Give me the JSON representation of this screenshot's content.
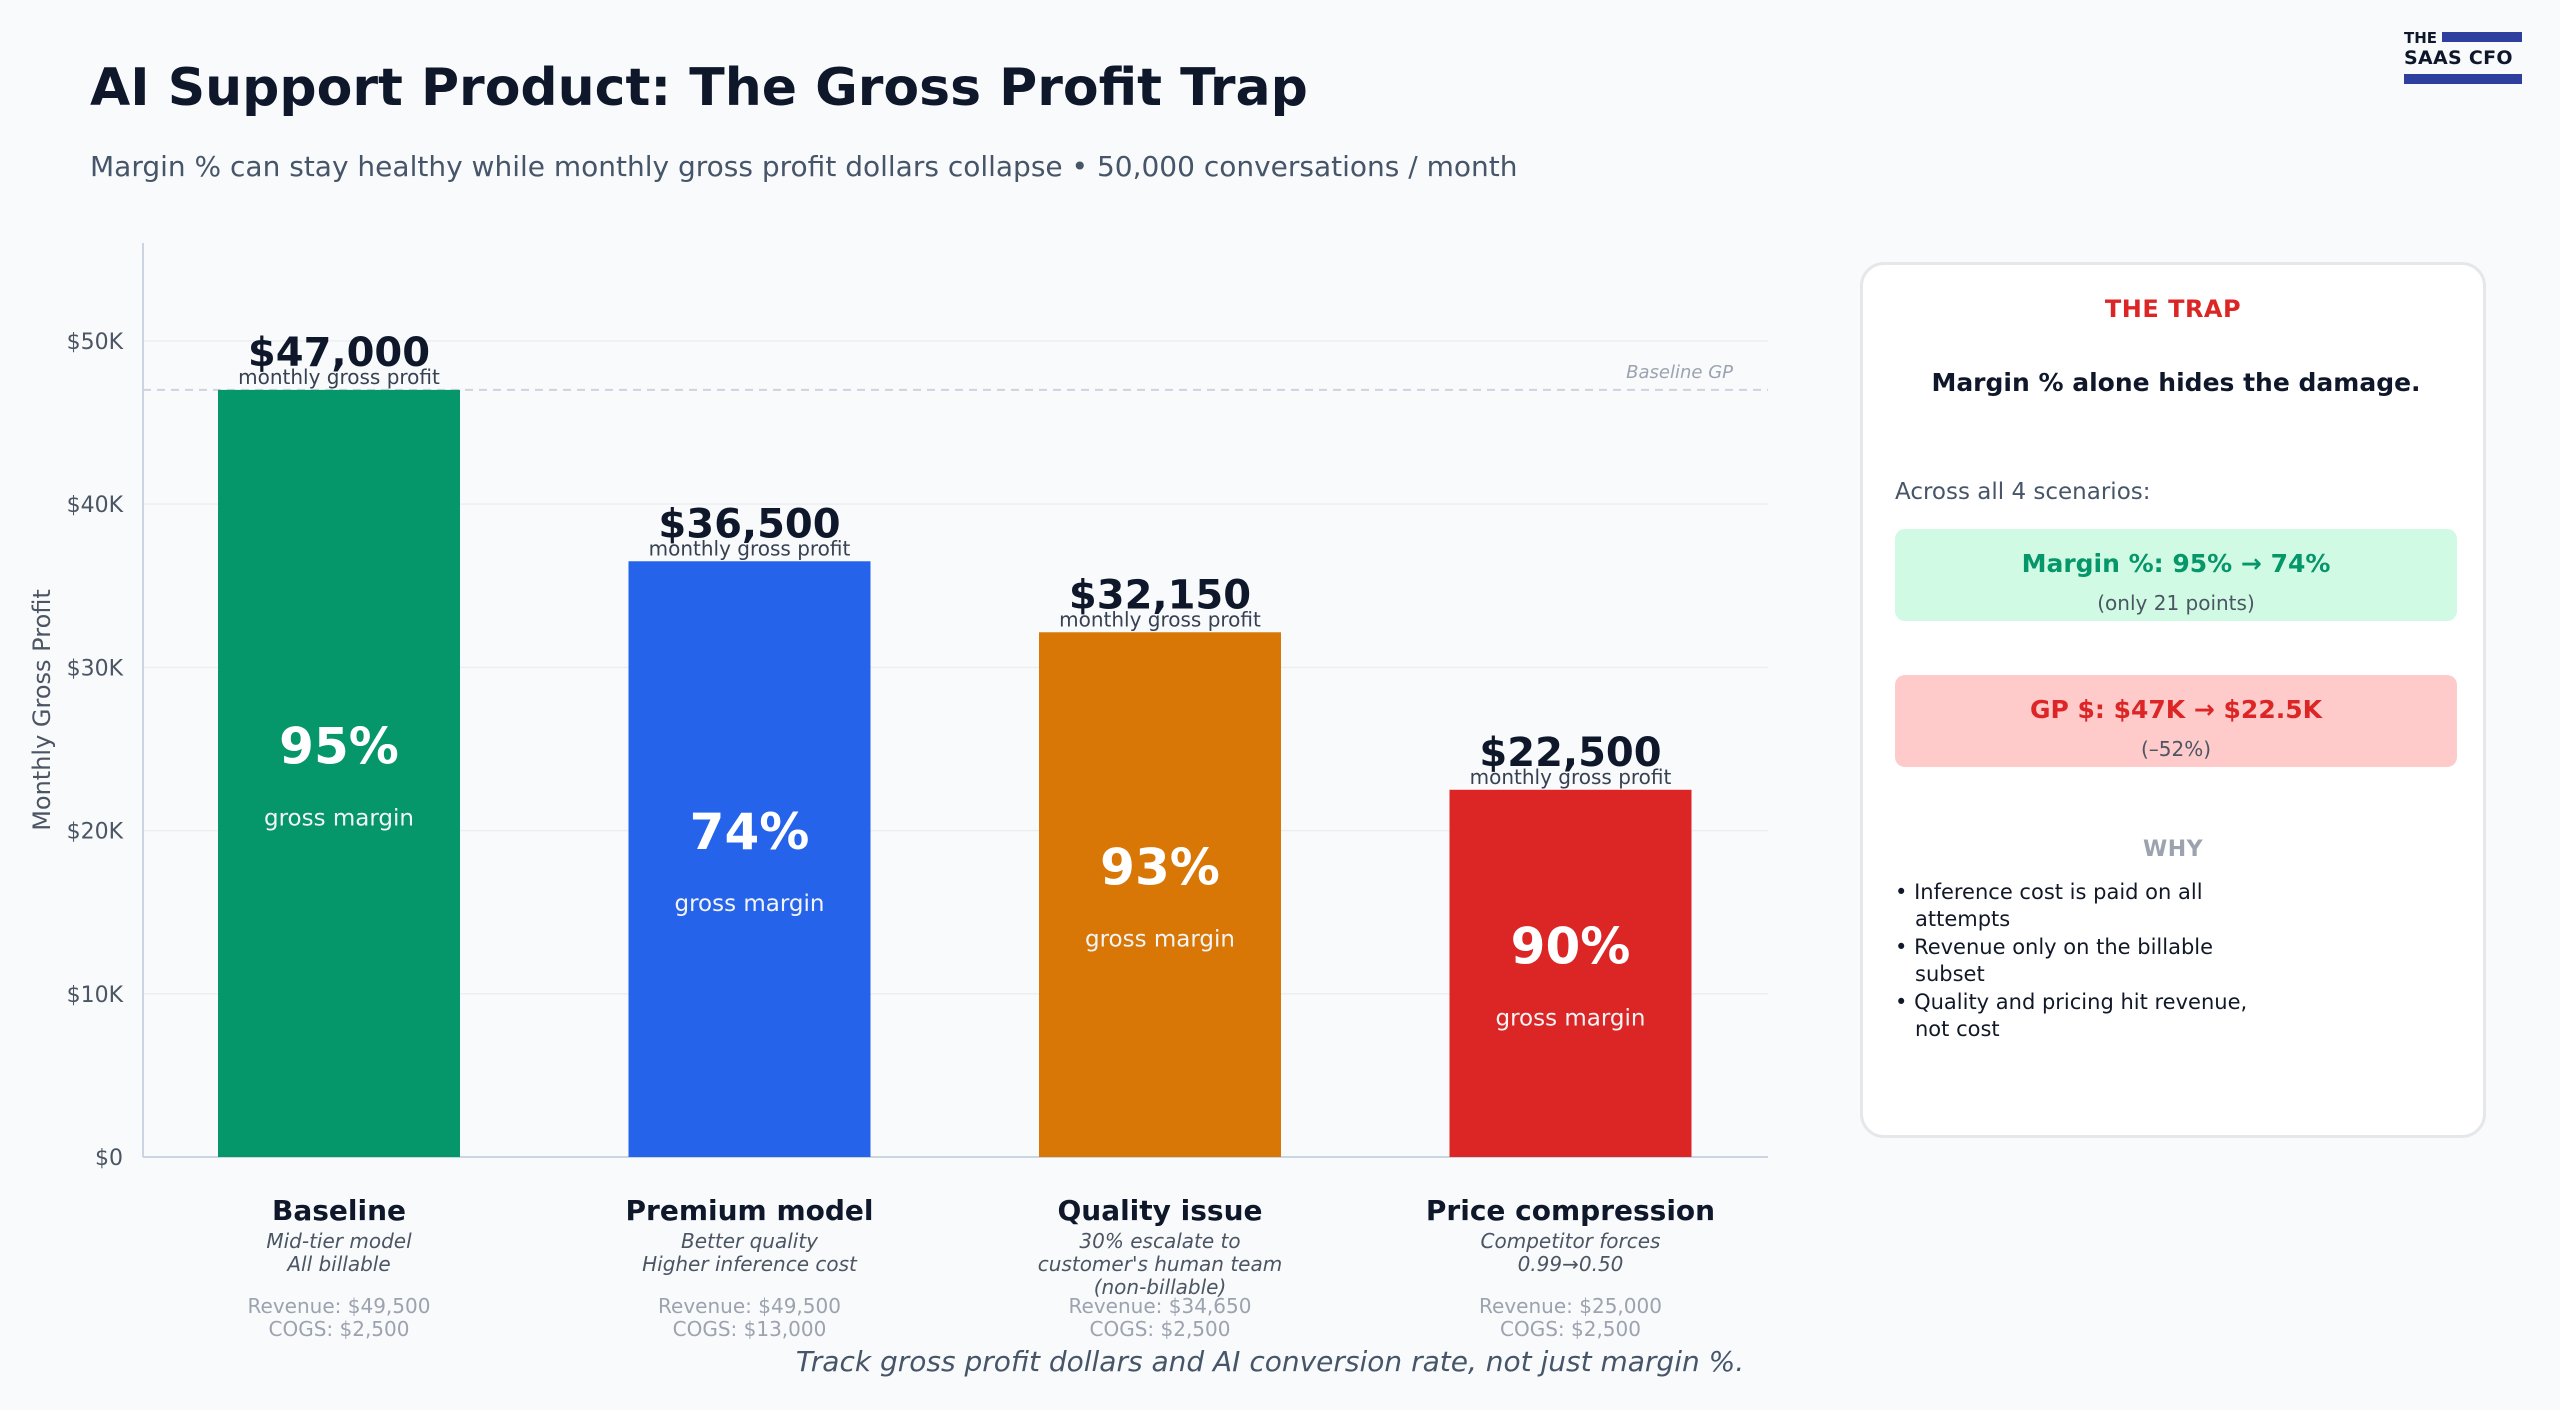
{
  "header": {
    "title": "AI Support Product: The Gross Profit Trap",
    "subtitle": "Margin % can stay healthy while monthly gross profit dollars collapse  •  50,000 conversations / month"
  },
  "logo": {
    "line1": "THE",
    "line2": "SAAS CFO",
    "color": "#2f3f9e"
  },
  "chart_data": {
    "type": "bar",
    "categories": [
      "Baseline",
      "Premium model",
      "Quality issue",
      "Price compression"
    ],
    "values": [
      47000,
      36500,
      32150,
      22500
    ],
    "value_labels": [
      "$47,000",
      "$36,500",
      "$32,150",
      "$22,500"
    ],
    "value_sublabel": "monthly gross profit",
    "margins": [
      "95%",
      "74%",
      "93%",
      "90%"
    ],
    "margin_label": "gross margin",
    "colors": [
      "#059669",
      "#2563eb",
      "#d97706",
      "#dc2626"
    ],
    "descriptions": [
      [
        "Mid-tier model",
        "All billable"
      ],
      [
        "Better quality",
        "Higher inference cost"
      ],
      [
        "30% escalate to",
        "customer's human team",
        "(non-billable)"
      ],
      [
        "Competitor forces",
        "0.99→0.50"
      ]
    ],
    "revenue": [
      "Revenue: $49,500",
      "Revenue: $49,500",
      "Revenue: $34,650",
      "Revenue: $25,000"
    ],
    "cogs": [
      "COGS: $2,500",
      "COGS: $13,000",
      "COGS: $2,500",
      "COGS: $2,500"
    ],
    "ylabel": "Monthly Gross Profit",
    "ylim": [
      0,
      56000
    ],
    "yticks": [
      0,
      10000,
      20000,
      30000,
      40000,
      50000
    ],
    "ytick_labels": [
      "$0",
      "$10K",
      "$20K",
      "$30K",
      "$40K",
      "$50K"
    ],
    "baseline": {
      "value": 47000,
      "label": "Baseline GP"
    },
    "grid": true
  },
  "panel": {
    "title": "THE TRAP",
    "headline": "Margin % alone hides the damage.",
    "across": "Across all 4 scenarios:",
    "margin_box": {
      "main": "Margin %: 95% → 74%",
      "sub": "(only 21 points)"
    },
    "gp_box": {
      "main": "GP $: $47K → $22.5K",
      "sub": "(–52%)"
    },
    "why_title": "WHY",
    "why_items": [
      "Inference cost is paid on all attempts",
      "Revenue only on the billable subset",
      "Quality and pricing hit revenue, not cost"
    ]
  },
  "footnote": "Track gross profit dollars and AI conversion rate, not just margin %."
}
